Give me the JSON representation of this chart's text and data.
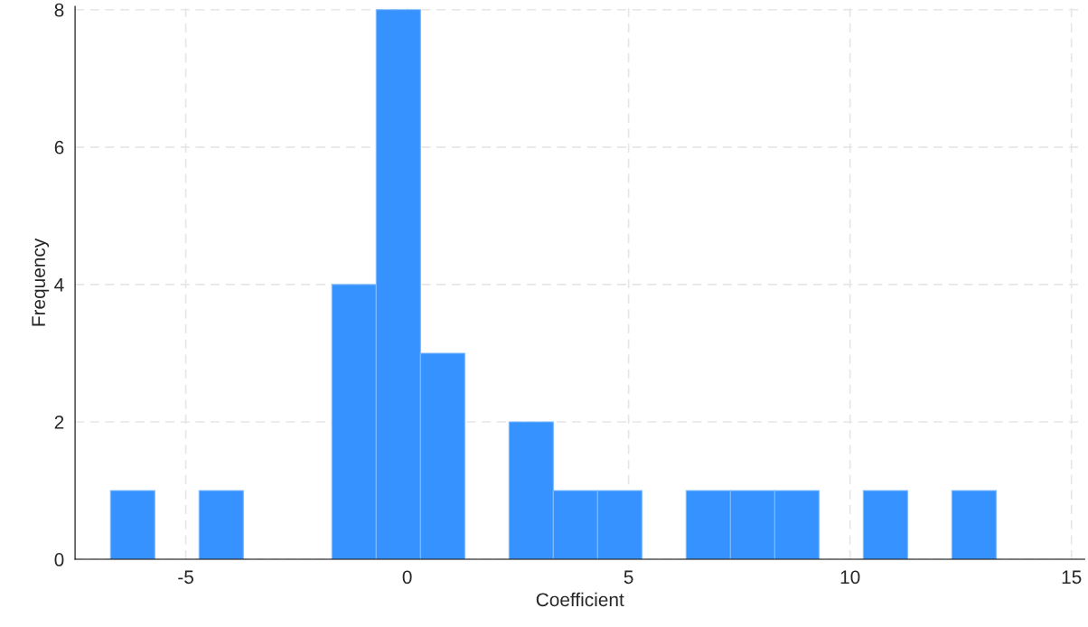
{
  "chart_data": {
    "type": "histogram",
    "xlabel": "Coefficient",
    "ylabel": "Frequency",
    "bins": [
      -6.7,
      -5.7,
      -4.7,
      -3.7,
      -2.7,
      -1.7,
      -0.7,
      0.3,
      1.3,
      2.3,
      3.3,
      4.3,
      5.3,
      6.3,
      7.3,
      8.3,
      9.3,
      10.3,
      11.3,
      12.3,
      13.3
    ],
    "values": [
      1,
      0,
      1,
      0,
      0,
      4,
      8,
      3,
      0,
      2,
      1,
      1,
      0,
      1,
      1,
      1,
      0,
      1,
      0,
      1
    ],
    "color": "#3592fe",
    "xlim": [
      -7.5,
      15.3
    ],
    "xticks": [
      -5,
      0,
      5,
      10,
      15
    ],
    "ylim": [
      0,
      8.05
    ],
    "yticks": [
      0,
      2,
      4,
      6,
      8
    ],
    "grid": true
  }
}
